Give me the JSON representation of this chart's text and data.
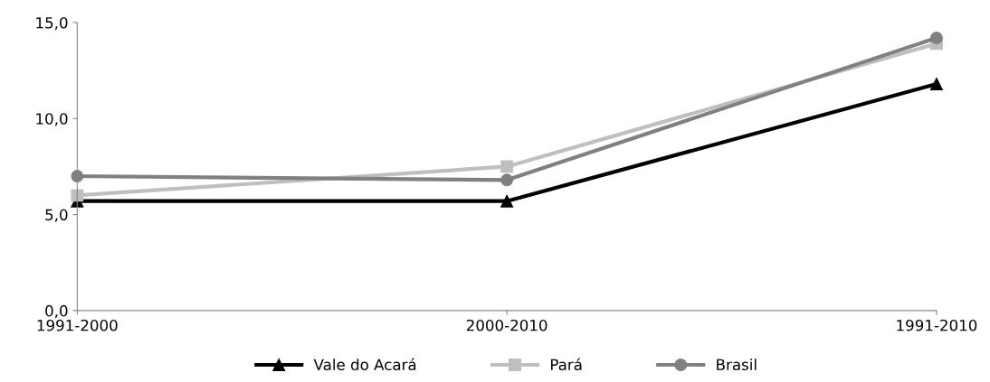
{
  "chart_data": {
    "type": "line",
    "categories": [
      "1991-2000",
      "2000-2010",
      "1991-2010"
    ],
    "series": [
      {
        "name": "Vale do Acará",
        "color": "#000000",
        "marker": "triangle",
        "values": [
          5.7,
          5.7,
          11.8
        ]
      },
      {
        "name": "Pará",
        "color": "#bfbfbf",
        "marker": "square",
        "values": [
          6.0,
          7.5,
          13.9
        ]
      },
      {
        "name": "Brasil",
        "color": "#808080",
        "marker": "circle",
        "values": [
          7.0,
          6.8,
          14.2
        ]
      }
    ],
    "ylim": [
      0,
      15
    ],
    "yticks": [
      {
        "value": 0,
        "label": "0,0"
      },
      {
        "value": 5,
        "label": "5,0"
      },
      {
        "value": 10,
        "label": "10,0"
      },
      {
        "value": 15,
        "label": "15,0"
      }
    ],
    "grid": false,
    "legend": "bottom",
    "line_style": "solid"
  }
}
